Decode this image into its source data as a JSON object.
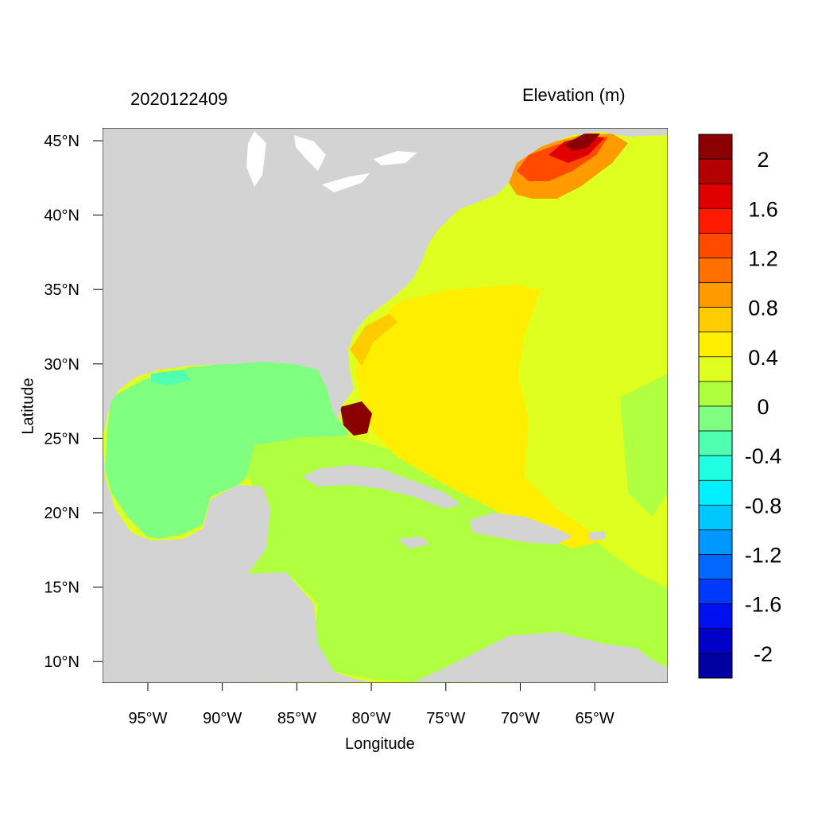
{
  "header": {
    "date_label": "2020122409",
    "variable_label": "Elevation (m)"
  },
  "axes": {
    "xlabel": "Longitude",
    "ylabel": "Latitude",
    "x_ticks": [
      "95°W",
      "90°W",
      "85°W",
      "80°W",
      "75°W",
      "70°W",
      "65°W"
    ],
    "y_ticks": [
      "45°N",
      "40°N",
      "35°N",
      "30°N",
      "25°N",
      "20°N",
      "15°N",
      "10°N"
    ]
  },
  "colorbar": {
    "labels": [
      "2",
      "1.6",
      "1.2",
      "0.8",
      "0.4",
      "0",
      "-0.4",
      "-0.8",
      "-1.2",
      "-1.6",
      "-2"
    ],
    "colors": [
      "#8b0000",
      "#b30000",
      "#e00000",
      "#ff1a00",
      "#ff4a00",
      "#ff7000",
      "#ff9a00",
      "#ffcc00",
      "#ffee00",
      "#dfff20",
      "#b0ff40",
      "#80ff80",
      "#50ffb0",
      "#20ffe0",
      "#00f0ff",
      "#00c8ff",
      "#0098ff",
      "#0068ff",
      "#0038ff",
      "#0010f0",
      "#0000c8",
      "#0000a0"
    ]
  },
  "map": {
    "land_color": "#d3d3d3",
    "ocean_base_color": "#dfff20"
  }
}
